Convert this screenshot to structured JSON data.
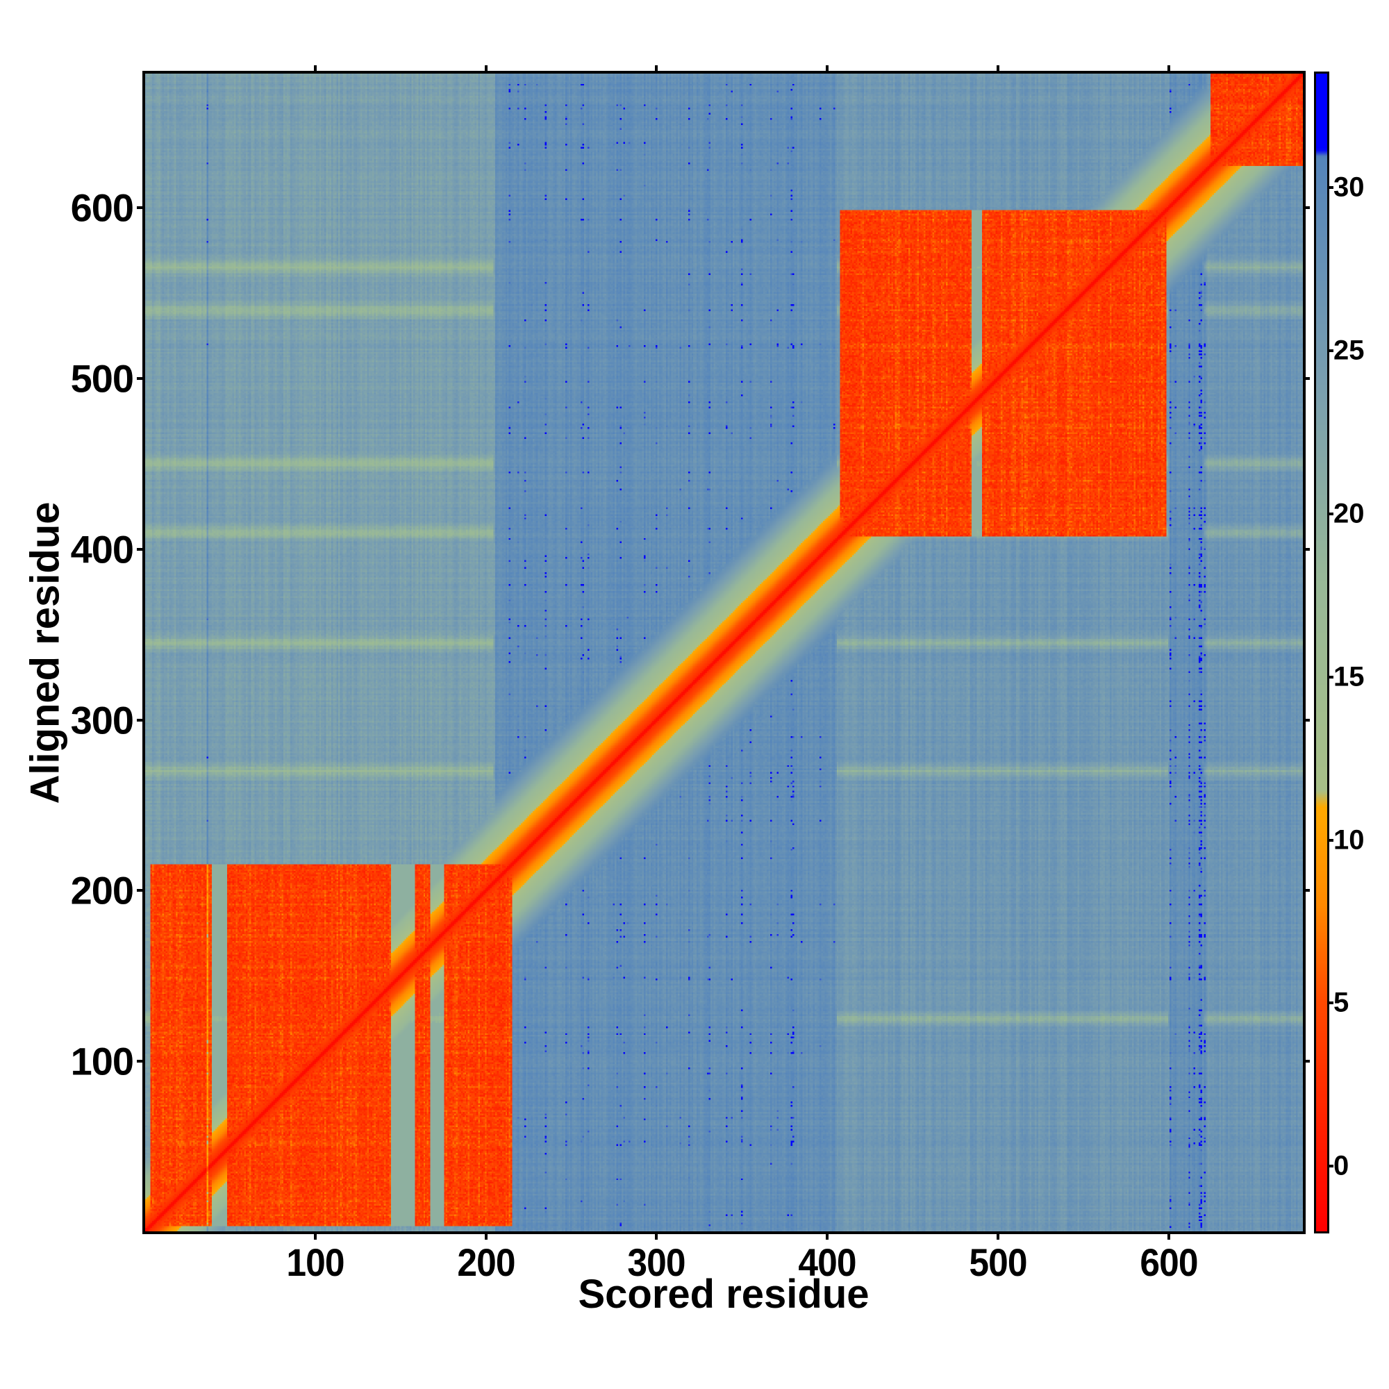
{
  "chart_data": {
    "type": "heatmap",
    "title": "",
    "xlabel": "Scored residue",
    "ylabel": "Aligned residue",
    "xlim": [
      1,
      678
    ],
    "ylim": [
      1,
      678
    ],
    "x_ticks": [
      100,
      200,
      300,
      400,
      500,
      600
    ],
    "y_ticks": [
      100,
      200,
      300,
      400,
      500,
      600
    ],
    "colorbar": {
      "ticks": [
        0,
        5,
        10,
        15,
        20,
        25,
        30
      ],
      "range": [
        -2,
        33.5
      ],
      "stops": [
        {
          "value": -2,
          "color": "#ff0000"
        },
        {
          "value": 2,
          "color": "#ff2a00"
        },
        {
          "value": 5,
          "color": "#ff4a00"
        },
        {
          "value": 8,
          "color": "#ff8a00"
        },
        {
          "value": 11,
          "color": "#ffaa00"
        },
        {
          "value": 11.5,
          "color": "#a8c088"
        },
        {
          "value": 18,
          "color": "#98b898"
        },
        {
          "value": 24,
          "color": "#7a9fb0"
        },
        {
          "value": 31,
          "color": "#5585bb"
        },
        {
          "value": 31.2,
          "color": "#0000ff"
        },
        {
          "value": 33.5,
          "color": "#0000ff"
        }
      ]
    },
    "low_error_domains": [
      {
        "start": 4,
        "end": 215,
        "value": 3
      },
      {
        "start": 408,
        "end": 598,
        "value": 3
      },
      {
        "start": 625,
        "end": 678,
        "value": 3
      }
    ],
    "background_value": 28,
    "diagonal_value": 0
  }
}
